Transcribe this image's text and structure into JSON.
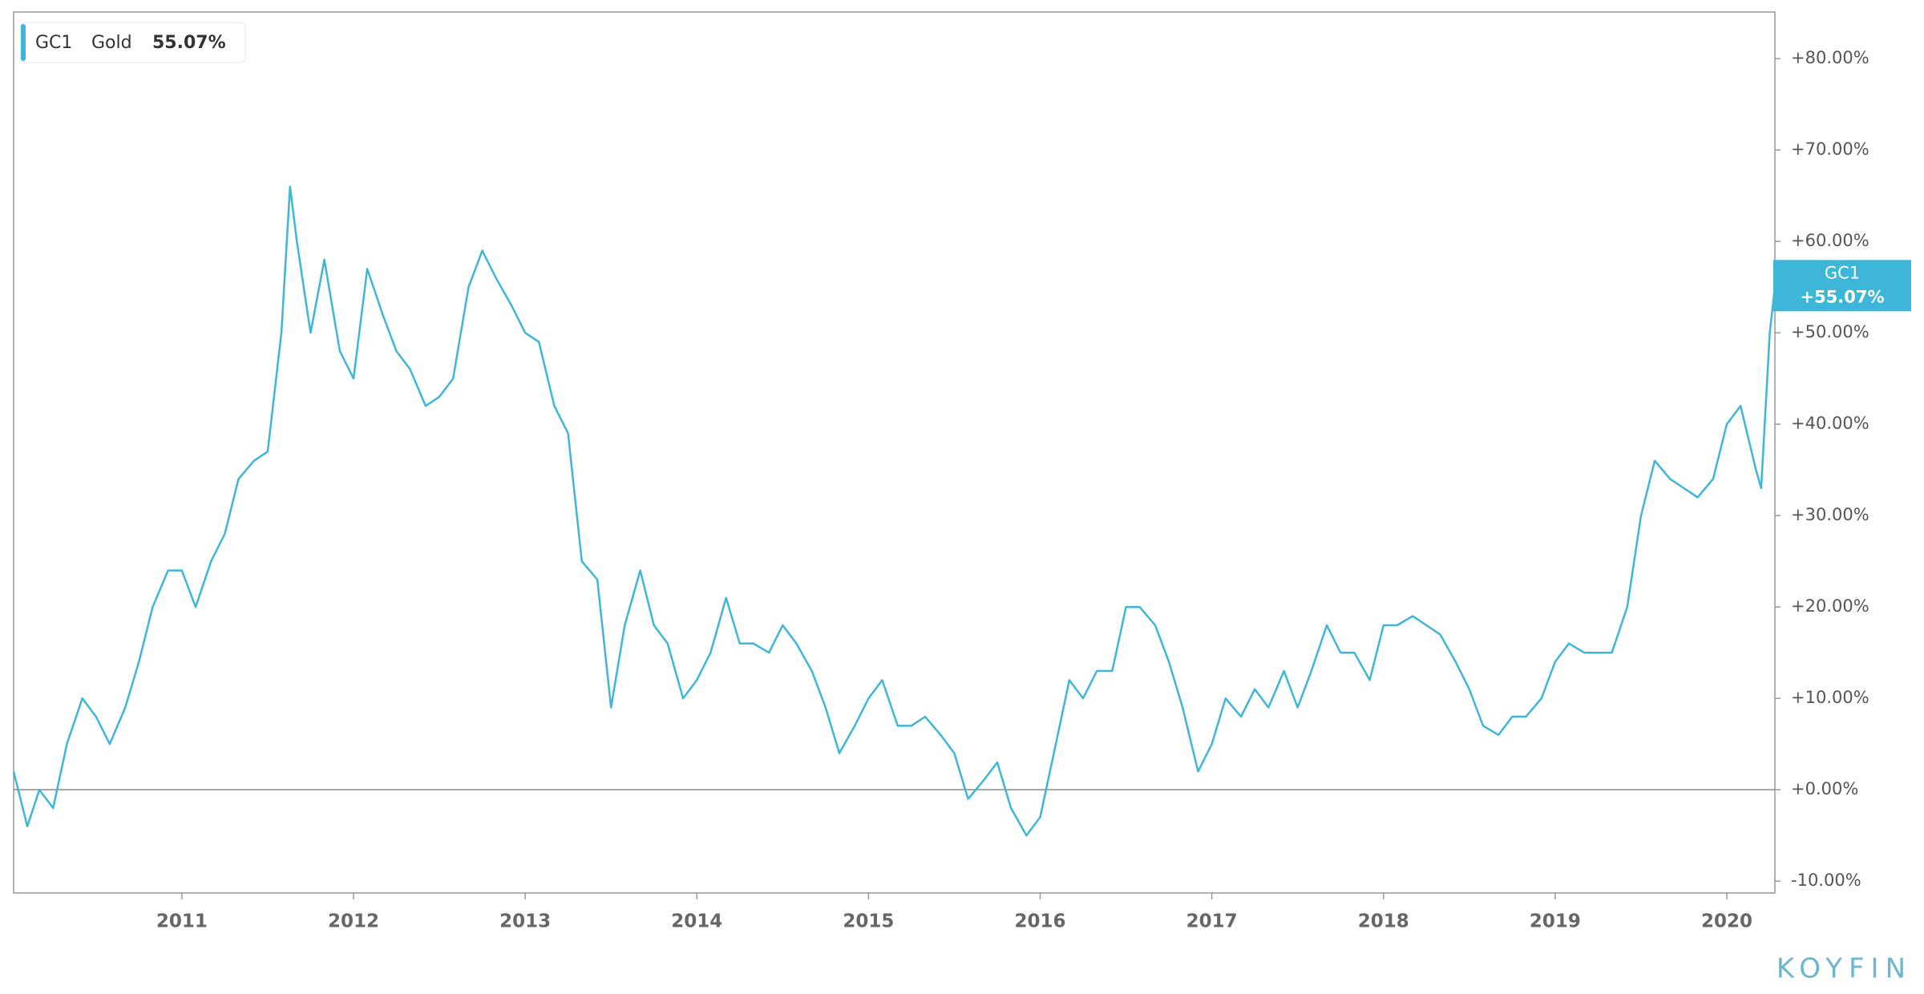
{
  "chart_data": {
    "type": "line",
    "series": [
      {
        "name": "GC1",
        "description": "Gold",
        "last_label": "55.07%",
        "tag_label": "+55.07%",
        "color": "#3db6d8",
        "x": [
          2010.02,
          2010.1,
          2010.17,
          2010.25,
          2010.33,
          2010.42,
          2010.5,
          2010.58,
          2010.67,
          2010.75,
          2010.83,
          2010.92,
          2011.0,
          2011.08,
          2011.17,
          2011.25,
          2011.33,
          2011.42,
          2011.5,
          2011.58,
          2011.63,
          2011.67,
          2011.75,
          2011.83,
          2011.92,
          2012.0,
          2012.08,
          2012.17,
          2012.25,
          2012.33,
          2012.42,
          2012.5,
          2012.58,
          2012.67,
          2012.75,
          2012.83,
          2012.92,
          2013.0,
          2013.08,
          2013.17,
          2013.25,
          2013.33,
          2013.42,
          2013.5,
          2013.58,
          2013.67,
          2013.75,
          2013.83,
          2013.92,
          2014.0,
          2014.08,
          2014.17,
          2014.25,
          2014.33,
          2014.42,
          2014.5,
          2014.58,
          2014.67,
          2014.75,
          2014.83,
          2014.92,
          2015.0,
          2015.08,
          2015.17,
          2015.25,
          2015.33,
          2015.42,
          2015.5,
          2015.58,
          2015.67,
          2015.75,
          2015.83,
          2015.92,
          2016.0,
          2016.08,
          2016.17,
          2016.25,
          2016.33,
          2016.42,
          2016.5,
          2016.58,
          2016.67,
          2016.75,
          2016.83,
          2016.92,
          2017.0,
          2017.08,
          2017.17,
          2017.25,
          2017.33,
          2017.42,
          2017.5,
          2017.58,
          2017.67,
          2017.75,
          2017.83,
          2017.92,
          2018.0,
          2018.08,
          2018.17,
          2018.25,
          2018.33,
          2018.42,
          2018.5,
          2018.58,
          2018.67,
          2018.75,
          2018.83,
          2018.92,
          2019.0,
          2019.08,
          2019.17,
          2019.25,
          2019.33,
          2019.42,
          2019.5,
          2019.58,
          2019.67,
          2019.75,
          2019.83,
          2019.92,
          2020.0,
          2020.08,
          2020.17,
          2020.2,
          2020.25,
          2020.28
        ],
        "values": [
          2,
          -4,
          0,
          -2,
          5,
          10,
          8,
          5,
          9,
          14,
          20,
          24,
          24,
          20,
          25,
          28,
          34,
          36,
          37,
          50,
          66,
          60,
          50,
          58,
          48,
          45,
          57,
          52,
          48,
          46,
          42,
          43,
          45,
          55,
          59,
          56,
          53,
          50,
          49,
          42,
          39,
          25,
          23,
          9,
          18,
          24,
          18,
          16,
          10,
          12,
          15,
          21,
          16,
          16,
          15,
          18,
          16,
          13,
          9,
          4,
          7,
          10,
          12,
          7,
          7,
          8,
          6,
          4,
          -1,
          1,
          3,
          -2,
          -5,
          -3,
          4,
          12,
          10,
          13,
          13,
          20,
          20,
          18,
          14,
          9,
          2,
          5,
          10,
          8,
          11,
          9,
          13,
          9,
          13,
          18,
          15,
          15,
          12,
          18,
          18,
          19,
          18,
          17,
          14,
          11,
          7,
          6,
          8,
          8,
          10,
          14,
          16,
          15,
          15,
          15,
          20,
          30,
          36,
          34,
          33,
          32,
          34,
          40,
          42,
          35,
          33,
          50,
          55.07
        ]
      }
    ],
    "xlim": [
      2010.02,
      2020.28
    ],
    "xticks": [
      2011,
      2012,
      2013,
      2014,
      2015,
      2016,
      2017,
      2018,
      2019,
      2020
    ],
    "ylim": [
      -11.3,
      85.1
    ],
    "yticks": [
      {
        "value": -10,
        "label": "-10.00%"
      },
      {
        "value": 0,
        "label": "+0.00%"
      },
      {
        "value": 10,
        "label": "+10.00%"
      },
      {
        "value": 20,
        "label": "+20.00%"
      },
      {
        "value": 30,
        "label": "+30.00%"
      },
      {
        "value": 40,
        "label": "+40.00%"
      },
      {
        "value": 50,
        "label": "+50.00%"
      },
      {
        "value": 60,
        "label": "+60.00%"
      },
      {
        "value": 70,
        "label": "+70.00%"
      },
      {
        "value": 80,
        "label": "+80.00%"
      }
    ],
    "brand": "KOYFIN"
  }
}
